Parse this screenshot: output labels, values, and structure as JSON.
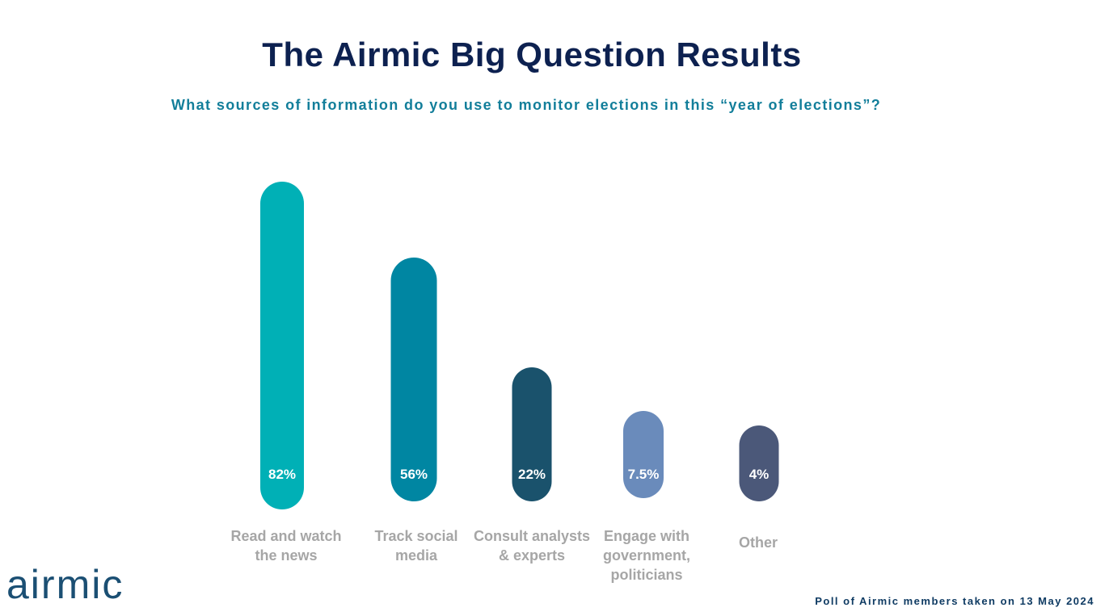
{
  "header": {
    "title": "The Airmic Big Question Results",
    "subtitle": "What sources of information do you use to monitor elections in this “year of elections”?"
  },
  "chart_data": {
    "type": "bar",
    "categories": [
      "Read and watch the news",
      "Track social media",
      "Consult analysts & experts",
      "Engage with government, politicians",
      "Other"
    ],
    "values": [
      82,
      56,
      22,
      7.5,
      4
    ],
    "data_labels": [
      "82%",
      "56%",
      "22%",
      "7.5%",
      "4%"
    ],
    "colors": [
      "#00b0b6",
      "#0086a2",
      "#1a526c",
      "#6a8bbb",
      "#4b5879"
    ],
    "title": "",
    "xlabel": "",
    "ylabel": "",
    "grid": false,
    "legend": "none"
  },
  "logo": {
    "text": "airmic"
  },
  "footer": {
    "note": "Poll of Airmic members taken on 13 May 2024"
  }
}
